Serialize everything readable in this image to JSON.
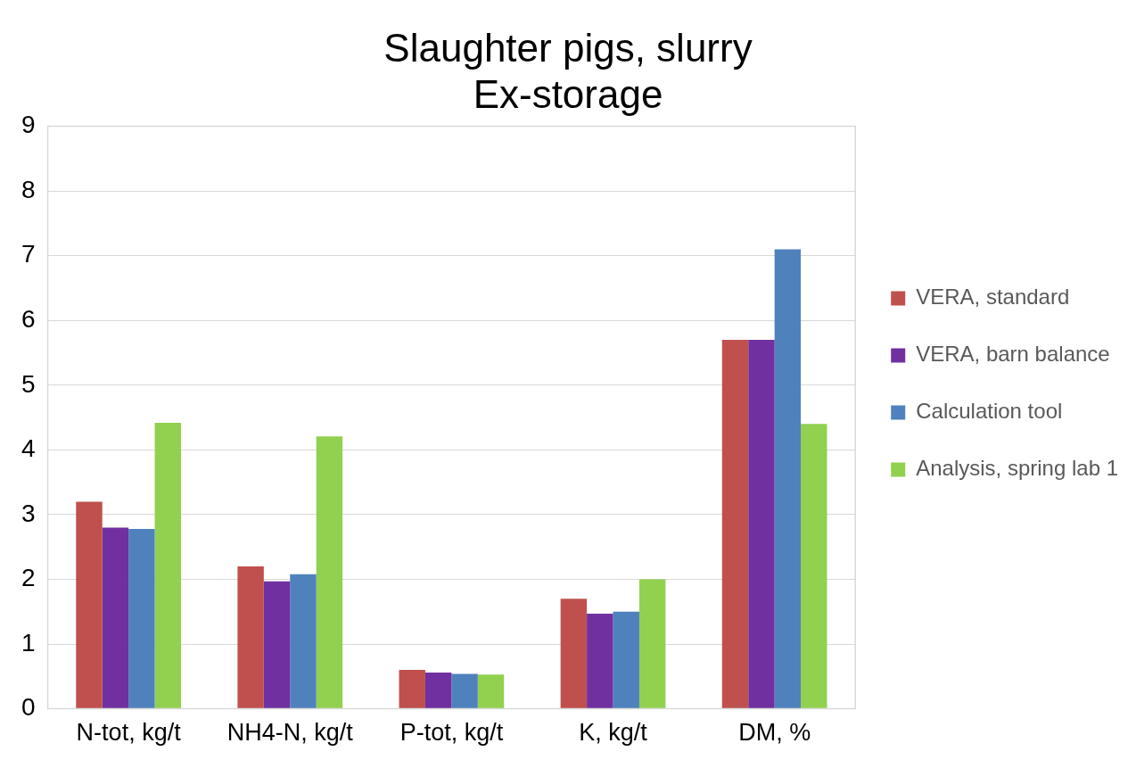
{
  "chart_data": {
    "type": "bar",
    "title": [
      "Slaughter pigs, slurry",
      "Ex-storage"
    ],
    "categories": [
      "N-tot, kg/t",
      "NH4-N, kg/t",
      "P-tot, kg/t",
      "K, kg/t",
      "DM, %"
    ],
    "series": [
      {
        "name": "VERA, standard",
        "color": "#c0504d",
        "values": [
          3.2,
          2.2,
          0.6,
          1.7,
          5.7
        ]
      },
      {
        "name": "VERA, barn balance",
        "color": "#7030a0",
        "values": [
          2.8,
          1.97,
          0.56,
          1.47,
          5.7
        ]
      },
      {
        "name": "Calculation tool",
        "color": "#4f81bd",
        "values": [
          2.78,
          2.08,
          0.54,
          1.5,
          7.1
        ]
      },
      {
        "name": "Analysis, spring lab 1",
        "color": "#92d050",
        "values": [
          4.42,
          4.21,
          0.53,
          2.0,
          4.4
        ]
      }
    ],
    "ylim": [
      0,
      9
    ],
    "yticks": [
      0,
      1,
      2,
      3,
      4,
      5,
      6,
      7,
      8,
      9
    ],
    "grid": "y",
    "legend": "right"
  }
}
